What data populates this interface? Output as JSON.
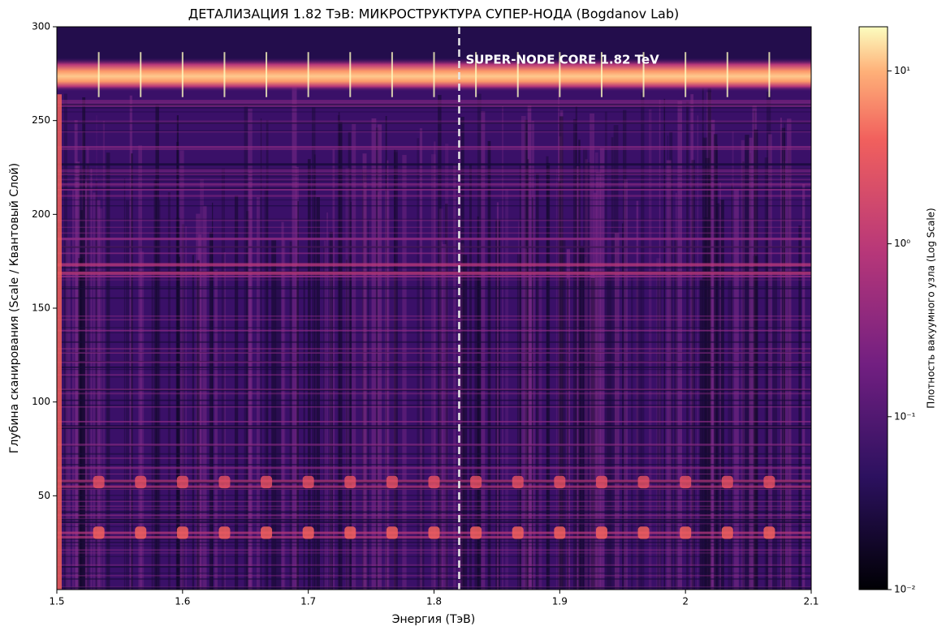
{
  "chart_data": {
    "type": "heatmap",
    "title": "ДЕТАЛИЗАЦИЯ 1.82 ТэВ: МИКРОСТРУКТУРА СУПЕР-НОДА (Bogdanov Lab)",
    "x_label": "Энергия (ТэВ)",
    "y_label": "Глубина сканирования (Scale / Квантовый Слой)",
    "xlim": [
      1.5,
      2.1
    ],
    "xticks": [
      1.5,
      1.6,
      1.7,
      1.8,
      1.9,
      2.0,
      2.1
    ],
    "ylim": [
      0,
      300
    ],
    "yticks": [
      50,
      100,
      150,
      200,
      250,
      300
    ],
    "colormap": "magma",
    "colorbar_label": "Плотность вакуумного узла (Log Scale)",
    "colorbar_scale": "log",
    "clim": [
      0.01,
      18
    ],
    "colorbar_ticks": [
      {
        "value": 0.01,
        "label": "10⁻²"
      },
      {
        "value": 0.1,
        "label": "10⁻¹"
      },
      {
        "value": 1,
        "label": "10⁰"
      },
      {
        "value": 10,
        "label": "10¹"
      }
    ],
    "vline": {
      "x": 1.82,
      "color": "#e6e6e6",
      "style": "dashed"
    },
    "annotation": "SUPER-NODE CORE 1.82 TeV"
  }
}
